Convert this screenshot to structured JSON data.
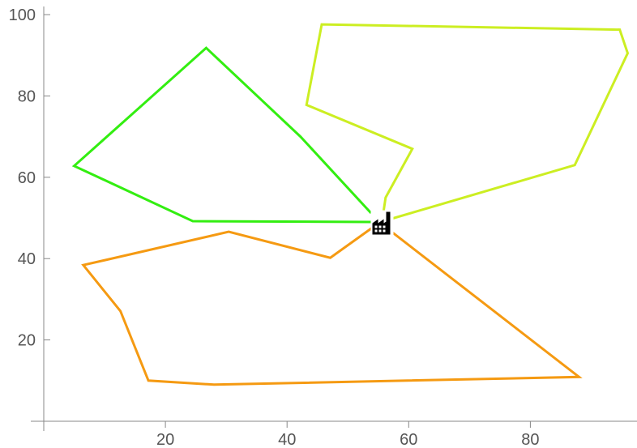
{
  "chart_data": {
    "type": "line",
    "title": "",
    "xlabel": "",
    "ylabel": "",
    "xlim": [
      0,
      97
    ],
    "ylim": [
      0,
      102
    ],
    "grid": false,
    "legend": "none",
    "x_ticks": [
      20,
      40,
      60,
      80
    ],
    "y_ticks": [
      20,
      40,
      60,
      80,
      100
    ],
    "x_tick_labels": [
      "20",
      "40",
      "60",
      "80"
    ],
    "y_tick_labels": [
      "20",
      "40",
      "60",
      "80",
      "100"
    ],
    "depot": {
      "x": 55.5,
      "y": 48.5,
      "icon": "factory-icon"
    },
    "series": [
      {
        "color": "#33ee11",
        "points": [
          [
            53.8,
            51.2
          ],
          [
            42.2,
            70.0
          ],
          [
            26.7,
            91.8
          ],
          [
            5.0,
            62.8
          ],
          [
            24.5,
            49.2
          ],
          [
            53.8,
            49.0
          ]
        ]
      },
      {
        "color": "#ccee22",
        "points": [
          [
            55.8,
            51.0
          ],
          [
            56.2,
            55.0
          ],
          [
            60.6,
            67.0
          ],
          [
            43.2,
            77.8
          ],
          [
            45.7,
            97.6
          ],
          [
            94.7,
            96.3
          ],
          [
            96.0,
            90.5
          ],
          [
            87.3,
            63.0
          ],
          [
            56.5,
            49.5
          ]
        ]
      },
      {
        "color": "#f59a12",
        "points": [
          [
            54.0,
            47.6
          ],
          [
            47.1,
            40.2
          ],
          [
            30.4,
            46.6
          ],
          [
            6.5,
            38.4
          ],
          [
            12.6,
            27.1
          ],
          [
            17.2,
            10.0
          ],
          [
            28.0,
            9.0
          ],
          [
            88.0,
            10.9
          ],
          [
            56.4,
            47.5
          ]
        ]
      }
    ]
  }
}
